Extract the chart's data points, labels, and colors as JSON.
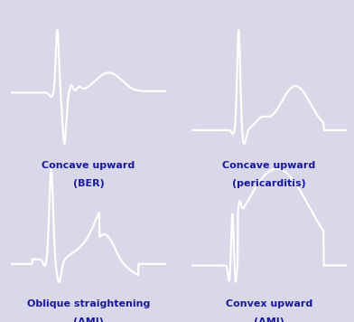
{
  "background_color": "#d8d8e8",
  "panel_bg": "#0d0d5e",
  "line_color": "#ffffff",
  "line_width": 1.6,
  "title_color": "#1a1a99",
  "labels": [
    [
      "Concave upward",
      "(BER)"
    ],
    [
      "Concave upward",
      "(pericarditis)"
    ],
    [
      "Oblique straightening",
      "(AMI)"
    ],
    [
      "Convex upward",
      "(AMI)"
    ]
  ],
  "label_fontsize": 8.0,
  "figsize": [
    3.92,
    3.56
  ],
  "dpi": 100
}
